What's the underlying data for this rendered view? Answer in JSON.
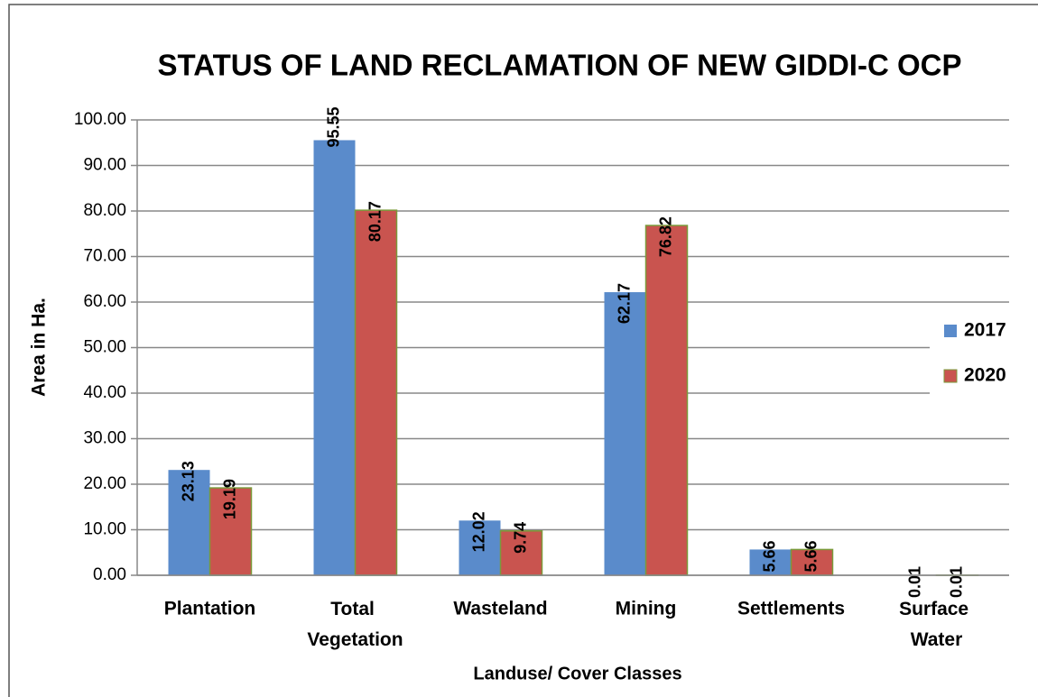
{
  "chart_data": {
    "type": "bar",
    "title": "STATUS OF LAND RECLAMATION OF NEW GIDDI-C OCP",
    "y_label": "Area in Ha.",
    "x_label": "Landuse/ Cover Classes",
    "categories": [
      "Plantation",
      "Total Vegetation",
      "Wasteland",
      "Mining",
      "Settlements",
      "Surface Water"
    ],
    "series": [
      {
        "name": "2017",
        "color": "#5a8bcb",
        "values": [
          23.13,
          95.55,
          12.02,
          62.17,
          5.66,
          0.01
        ]
      },
      {
        "name": "2020",
        "color": "#c9544f",
        "values": [
          19.19,
          80.17,
          9.74,
          76.82,
          5.66,
          0.01
        ]
      }
    ],
    "ylim": [
      0,
      100
    ],
    "yticks": [
      {
        "value": 0,
        "label": "0.00"
      },
      {
        "value": 10,
        "label": "10.00"
      },
      {
        "value": 20,
        "label": "20.00"
      },
      {
        "value": 30,
        "label": "30.00"
      },
      {
        "value": 40,
        "label": "40.00"
      },
      {
        "value": 50,
        "label": "50.00"
      },
      {
        "value": 60,
        "label": "60.00"
      },
      {
        "value": 70,
        "label": "70.00"
      },
      {
        "value": 80,
        "label": "80.00"
      },
      {
        "value": 90,
        "label": "90.00"
      },
      {
        "value": 100,
        "label": "100.00"
      }
    ],
    "grid": true,
    "legend": "right"
  }
}
